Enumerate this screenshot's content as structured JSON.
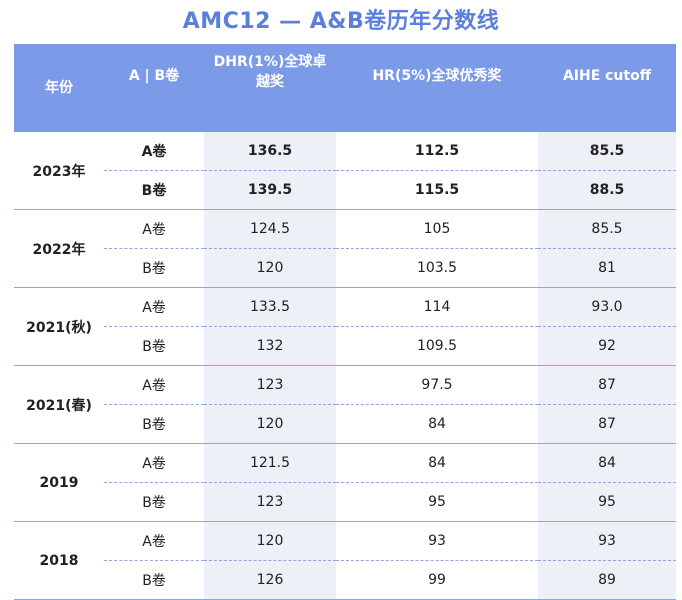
{
  "title": "AMC12 — A&B卷历年分数线",
  "headers": {
    "year": "年份",
    "paper": "A | B卷",
    "dhr": "DHR(1%)全球卓越奖",
    "hr": "HR(5%)全球优秀奖",
    "aihe": "AIHE cutoff"
  },
  "years": [
    {
      "label": "2023年",
      "bold": true,
      "rows": [
        {
          "paper": "A卷",
          "dhr": "136.5",
          "hr": "112.5",
          "aihe": "85.5"
        },
        {
          "paper": "B卷",
          "dhr": "139.5",
          "hr": "115.5",
          "aihe": "88.5"
        }
      ]
    },
    {
      "label": "2022年",
      "bold": false,
      "rows": [
        {
          "paper": "A卷",
          "dhr": "124.5",
          "hr": "105",
          "aihe": "85.5"
        },
        {
          "paper": "B卷",
          "dhr": "120",
          "hr": "103.5",
          "aihe": "81"
        }
      ]
    },
    {
      "label": "2021(秋)",
      "bold": false,
      "rows": [
        {
          "paper": "A卷",
          "dhr": "133.5",
          "hr": "114",
          "aihe": "93.0"
        },
        {
          "paper": "B卷",
          "dhr": "132",
          "hr": "109.5",
          "aihe": "92"
        }
      ]
    },
    {
      "label": "2021(春)",
      "bold": false,
      "rows": [
        {
          "paper": "A卷",
          "dhr": "123",
          "hr": "97.5",
          "aihe": "87"
        },
        {
          "paper": "B卷",
          "dhr": "120",
          "hr": "84",
          "aihe": "87"
        }
      ]
    },
    {
      "label": "2019",
      "bold": false,
      "rows": [
        {
          "paper": "A卷",
          "dhr": "121.5",
          "hr": "84",
          "aihe": "84"
        },
        {
          "paper": "B卷",
          "dhr": "123",
          "hr": "95",
          "aihe": "95"
        }
      ]
    },
    {
      "label": "2018",
      "bold": false,
      "rows": [
        {
          "paper": "A卷",
          "dhr": "120",
          "hr": "93",
          "aihe": "93"
        },
        {
          "paper": "B卷",
          "dhr": "126",
          "hr": "99",
          "aihe": "89"
        }
      ]
    }
  ]
}
